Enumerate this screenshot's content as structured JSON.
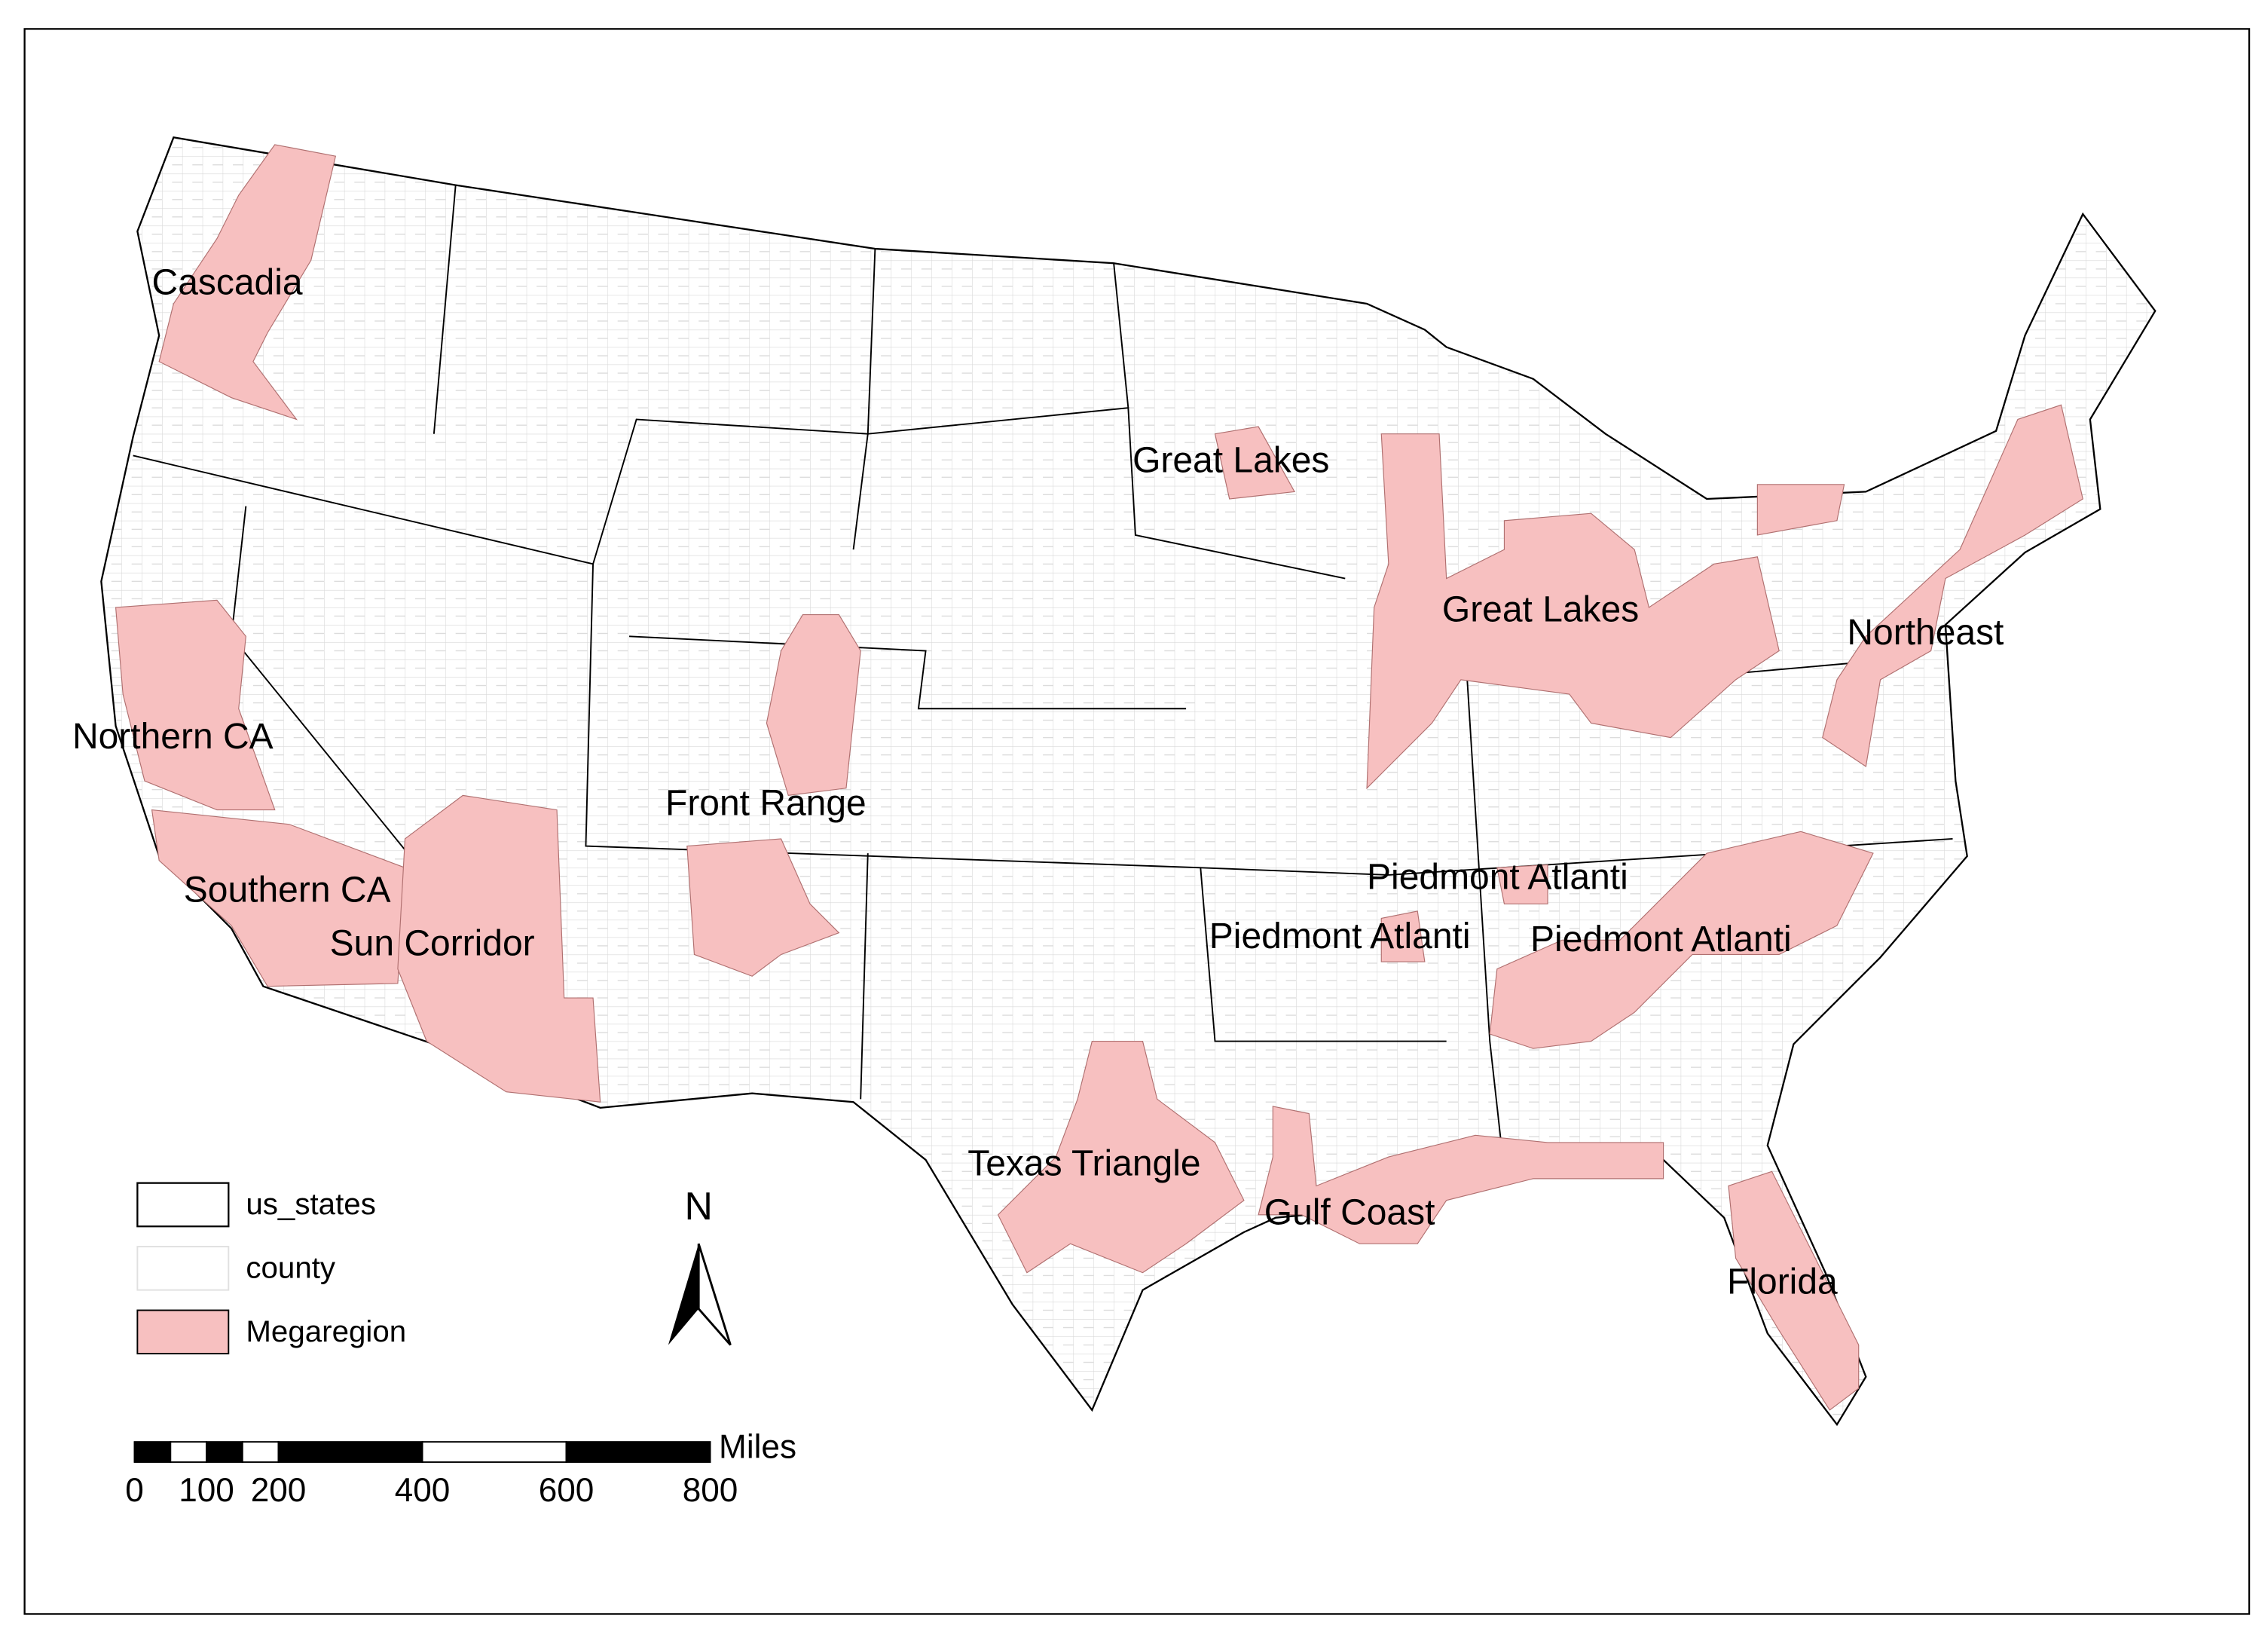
{
  "map": {
    "megaregions": [
      {
        "label": "Cascadia"
      },
      {
        "label": "Great Lakes"
      },
      {
        "label": "Great Lakes"
      },
      {
        "label": "Northeast"
      },
      {
        "label": "Northern CA"
      },
      {
        "label": "Front Range"
      },
      {
        "label": "Southern CA"
      },
      {
        "label": "Sun Corridor"
      },
      {
        "label": "Piedmont Atlanti"
      },
      {
        "label": "Piedmont Atlanti"
      },
      {
        "label": "Piedmont Atlanti"
      },
      {
        "label": "Texas Triangle"
      },
      {
        "label": "Gulf Coast"
      },
      {
        "label": "Florida"
      }
    ],
    "legend": [
      {
        "label": "us_states"
      },
      {
        "label": "county"
      },
      {
        "label": "Megaregion"
      }
    ],
    "north_arrow": "N",
    "scale_bar": {
      "unit": "Miles",
      "ticks": [
        0,
        100,
        200,
        400,
        600,
        800
      ]
    }
  }
}
